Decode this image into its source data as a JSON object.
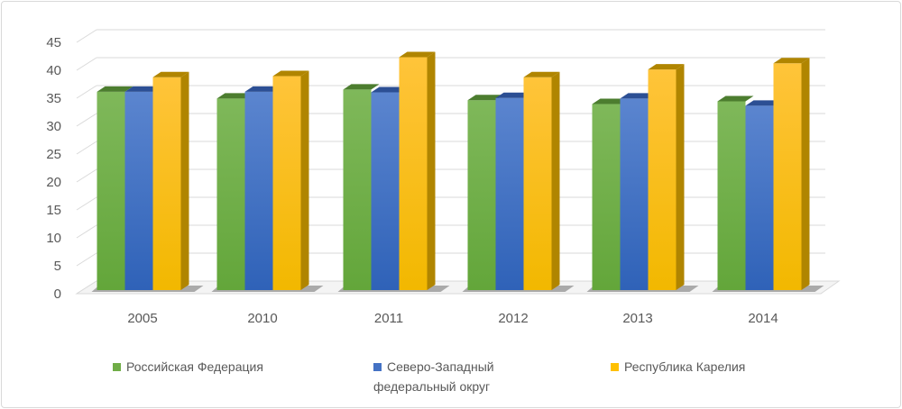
{
  "chart_data": {
    "type": "bar",
    "style": "3d-clustered-column",
    "categories": [
      "2005",
      "2010",
      "2011",
      "2012",
      "2013",
      "2014"
    ],
    "series": [
      {
        "name": "Российская Федерация",
        "color": "#70ad47",
        "values": [
          35.5,
          34.3,
          35.9,
          34.0,
          33.3,
          33.8
        ]
      },
      {
        "name_line1": "Северо-Западный",
        "name_line2": "федеральный округ",
        "name": "Северо-Западный федеральный округ",
        "color": "#4472c4",
        "values": [
          35.5,
          35.5,
          35.4,
          34.4,
          34.3,
          33.0
        ]
      },
      {
        "name": "Республика Карелия",
        "color": "#ffc000",
        "values": [
          38.1,
          38.3,
          41.7,
          38.1,
          39.5,
          40.6
        ]
      }
    ],
    "yticks": [
      "0",
      "5",
      "10",
      "15",
      "20",
      "25",
      "30",
      "35",
      "40",
      "45"
    ],
    "ylim": [
      0,
      45
    ],
    "grid": true,
    "legend": "bottom",
    "title": "",
    "xlabel": "",
    "ylabel": ""
  }
}
